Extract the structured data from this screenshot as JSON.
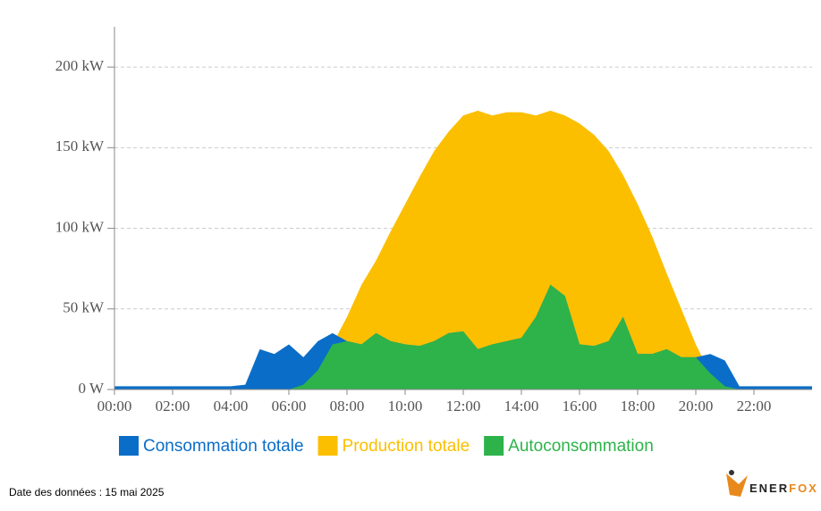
{
  "chart_data": {
    "type": "area",
    "x": [
      0,
      0.5,
      1,
      1.5,
      2,
      2.5,
      3,
      3.5,
      4,
      4.5,
      5,
      5.5,
      6,
      6.5,
      7,
      7.5,
      8,
      8.5,
      9,
      9.5,
      10,
      10.5,
      11,
      11.5,
      12,
      12.5,
      13,
      13.5,
      14,
      14.5,
      15,
      15.5,
      16,
      16.5,
      17,
      17.5,
      18,
      18.5,
      19,
      19.5,
      20,
      20.5,
      21,
      21.5,
      22,
      22.5,
      23,
      23.5,
      24
    ],
    "series": [
      {
        "name": "Production totale",
        "color": "#fbbf00",
        "values": [
          0,
          0,
          0,
          0,
          0,
          0,
          0,
          0,
          0,
          0,
          0,
          0,
          0,
          3,
          12,
          28,
          45,
          65,
          80,
          98,
          115,
          132,
          148,
          160,
          170,
          173,
          170,
          172,
          172,
          170,
          173,
          170,
          165,
          158,
          148,
          133,
          115,
          95,
          72,
          50,
          28,
          10,
          2,
          0,
          0,
          0,
          0,
          0,
          0
        ]
      },
      {
        "name": "Consommation totale",
        "color": "#0a6ec8",
        "values": [
          2,
          2,
          2,
          2,
          2,
          2,
          2,
          2,
          2,
          3,
          25,
          22,
          28,
          20,
          30,
          35,
          30,
          28,
          35,
          30,
          28,
          27,
          30,
          35,
          36,
          25,
          28,
          30,
          32,
          45,
          65,
          58,
          28,
          27,
          30,
          45,
          22,
          22,
          25,
          20,
          20,
          22,
          18,
          2,
          2,
          2,
          2,
          2,
          2
        ]
      },
      {
        "name": "Autoconsommation",
        "color": "#2db34a",
        "values": [
          0,
          0,
          0,
          0,
          0,
          0,
          0,
          0,
          0,
          0,
          0,
          0,
          0,
          3,
          12,
          28,
          30,
          28,
          35,
          30,
          28,
          27,
          30,
          35,
          36,
          25,
          28,
          30,
          32,
          45,
          65,
          58,
          28,
          27,
          30,
          45,
          22,
          22,
          25,
          20,
          20,
          10,
          2,
          0,
          0,
          0,
          0,
          0,
          0
        ]
      }
    ],
    "xlim": [
      0,
      24
    ],
    "xticks": [
      {
        "value": 0,
        "label": "00:00"
      },
      {
        "value": 2,
        "label": "02:00"
      },
      {
        "value": 4,
        "label": "04:00"
      },
      {
        "value": 6,
        "label": "06:00"
      },
      {
        "value": 8,
        "label": "08:00"
      },
      {
        "value": 10,
        "label": "10:00"
      },
      {
        "value": 12,
        "label": "12:00"
      },
      {
        "value": 14,
        "label": "14:00"
      },
      {
        "value": 16,
        "label": "16:00"
      },
      {
        "value": 18,
        "label": "18:00"
      },
      {
        "value": 20,
        "label": "20:00"
      },
      {
        "value": 22,
        "label": "22:00"
      }
    ],
    "ylim": [
      0,
      225
    ],
    "yticks": [
      {
        "value": 0,
        "label": "0 W"
      },
      {
        "value": 50,
        "label": "50 kW"
      },
      {
        "value": 100,
        "label": "100 kW"
      },
      {
        "value": 150,
        "label": "150 kW"
      },
      {
        "value": 200,
        "label": "200 kW"
      }
    ],
    "grid": true,
    "legend_order": [
      1,
      0,
      2
    ],
    "footnote": "Date des données : 15 mai 2025",
    "logo": {
      "part1": "ENER",
      "part2": "FOX"
    }
  }
}
